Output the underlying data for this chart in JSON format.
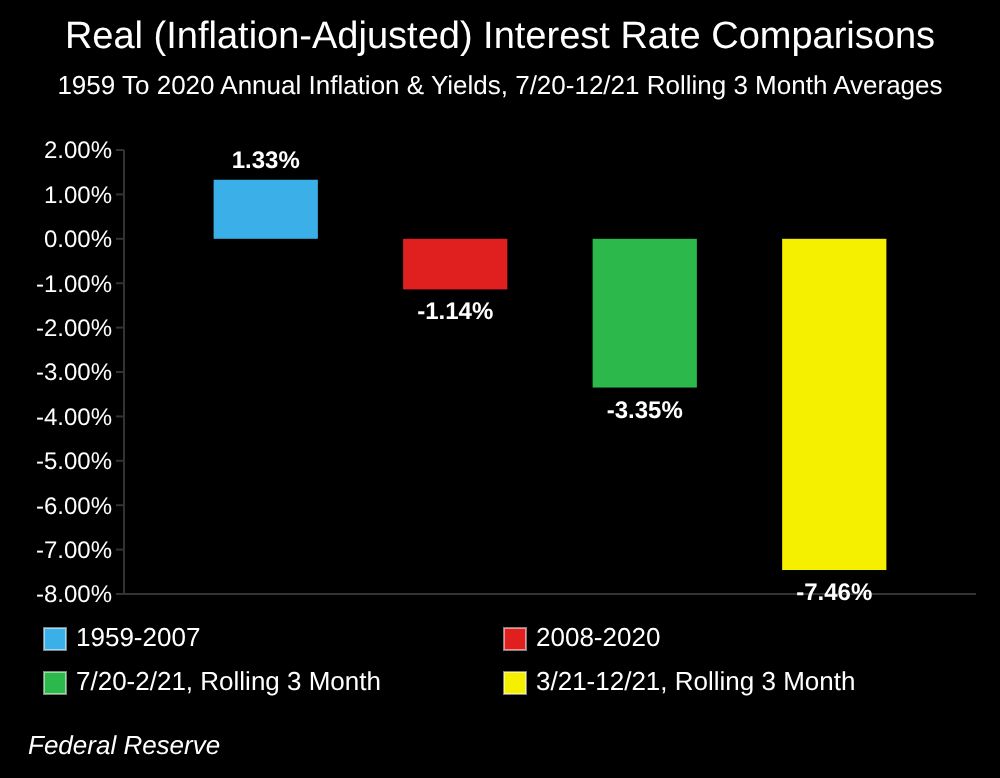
{
  "chart_data": {
    "type": "bar",
    "title": "Real (Inflation-Adjusted) Interest Rate Comparisons",
    "subtitle": "1959 To 2020 Annual Inflation & Yields, 7/20-12/21 Rolling 3 Month Averages",
    "categories": [
      null
    ],
    "series": [
      {
        "name": "1959-2007",
        "color": "#3bb0e8",
        "values": [
          1.33
        ],
        "value_labels": [
          "1.33%"
        ]
      },
      {
        "name": "2008-2020",
        "color": "#e0201e",
        "values": [
          -1.14
        ],
        "value_labels": [
          "-1.14%"
        ]
      },
      {
        "name": "7/20-2/21, Rolling 3 Month",
        "color": "#2cb84a",
        "values": [
          -3.35
        ],
        "value_labels": [
          "-3.35%"
        ]
      },
      {
        "name": "3/21-12/21, Rolling 3 Month",
        "color": "#f5f000",
        "values": [
          -7.46
        ],
        "value_labels": [
          "-7.46%"
        ]
      }
    ],
    "ylim": [
      -8,
      2
    ],
    "yticks": [
      {
        "value": 2,
        "label": "2.00%"
      },
      {
        "value": 1,
        "label": "1.00%"
      },
      {
        "value": 0,
        "label": "0.00%"
      },
      {
        "value": -1,
        "label": "-1.00%"
      },
      {
        "value": -2,
        "label": "-2.00%"
      },
      {
        "value": -3,
        "label": "-3.00%"
      },
      {
        "value": -4,
        "label": "-4.00%"
      },
      {
        "value": -5,
        "label": "-5.00%"
      },
      {
        "value": -6,
        "label": "-6.00%"
      },
      {
        "value": -7,
        "label": "-7.00%"
      },
      {
        "value": -8,
        "label": "-8.00%"
      }
    ],
    "legend": "bottom",
    "annotations": [
      "Federal Reserve"
    ]
  }
}
